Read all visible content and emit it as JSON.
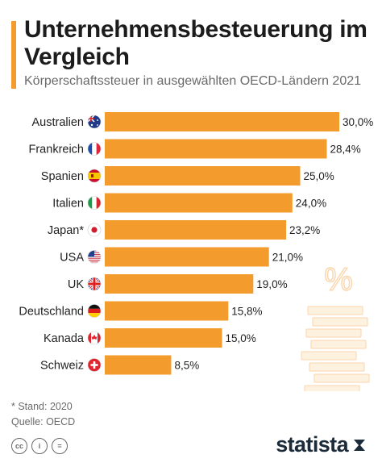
{
  "title": "Unternehmensbesteuerung im Vergleich",
  "subtitle": "Körperschaftssteuer in ausgewählten OECD-Ländern 2021",
  "bar_color": "#f39c2d",
  "chart_data": {
    "type": "bar",
    "orientation": "horizontal",
    "title": "Unternehmensbesteuerung im Vergleich",
    "subtitle": "Körperschaftssteuer in ausgewählten OECD-Ländern 2021",
    "categories": [
      "Australien",
      "Frankreich",
      "Spanien",
      "Italien",
      "Japan*",
      "USA",
      "UK",
      "Deutschland",
      "Kanada",
      "Schweiz"
    ],
    "values": [
      30.0,
      28.4,
      25.0,
      24.0,
      23.2,
      21.0,
      19.0,
      15.8,
      15.0,
      8.5
    ],
    "value_labels": [
      "30,0%",
      "28,4%",
      "25,0%",
      "24,0%",
      "23,2%",
      "21,0%",
      "19,0%",
      "15,8%",
      "15,0%",
      "8,5%"
    ],
    "flags": [
      "australia-flag",
      "france-flag",
      "spain-flag",
      "italy-flag",
      "japan-flag",
      "usa-flag",
      "uk-flag",
      "germany-flag",
      "canada-flag",
      "switzerland-flag"
    ],
    "xlim": [
      0,
      30
    ],
    "grid": false,
    "legend": "none"
  },
  "decoration": {
    "symbol": "%"
  },
  "footnote": {
    "stand": "* Stand: 2020",
    "source": "Quelle: OECD"
  },
  "license_icons": [
    "cc",
    "i",
    "="
  ],
  "logo": "statista"
}
